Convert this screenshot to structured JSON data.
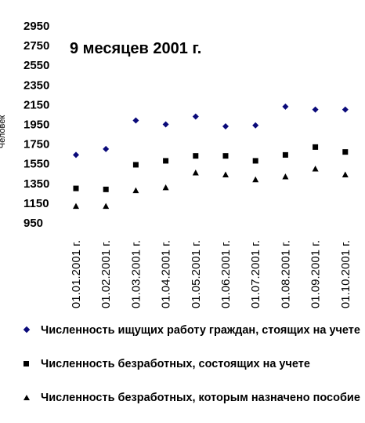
{
  "chart_data": {
    "type": "scatter",
    "title": "9 месяцев 2001 г.",
    "ylabel": "Человек",
    "xlabel": "",
    "ylim": [
      950,
      2950
    ],
    "yticks": [
      2950,
      2750,
      2550,
      2350,
      2150,
      1950,
      1750,
      1550,
      1350,
      1150,
      950
    ],
    "categories": [
      "01.01.2001 г.",
      "01.02.2001 г.",
      "01.03.2001 г.",
      "01.04.2001 г.",
      "01.05.2001 г.",
      "01.06.2001 г.",
      "01.07.2001 г.",
      "01.08.2001 г.",
      "01.09.2001 г.",
      "01.10.2001 г."
    ],
    "series": [
      {
        "name": "Численность ищущих работу граждан, стоящих на учете",
        "marker": "diamond",
        "color": "#0a0a7a",
        "values": [
          1640,
          1700,
          1990,
          1950,
          2030,
          1930,
          1940,
          2130,
          2100,
          2100
        ]
      },
      {
        "name": "Численность безработных, состоящих на учете",
        "marker": "square",
        "color": "#000000",
        "values": [
          1300,
          1290,
          1540,
          1580,
          1630,
          1630,
          1580,
          1640,
          1720,
          1670
        ]
      },
      {
        "name": "Численность безработных, которым назначено пособие",
        "marker": "triangle",
        "color": "#000000",
        "values": [
          1120,
          1120,
          1280,
          1310,
          1460,
          1440,
          1390,
          1420,
          1500,
          1440
        ]
      }
    ],
    "legend_position": "bottom",
    "grid": false
  }
}
